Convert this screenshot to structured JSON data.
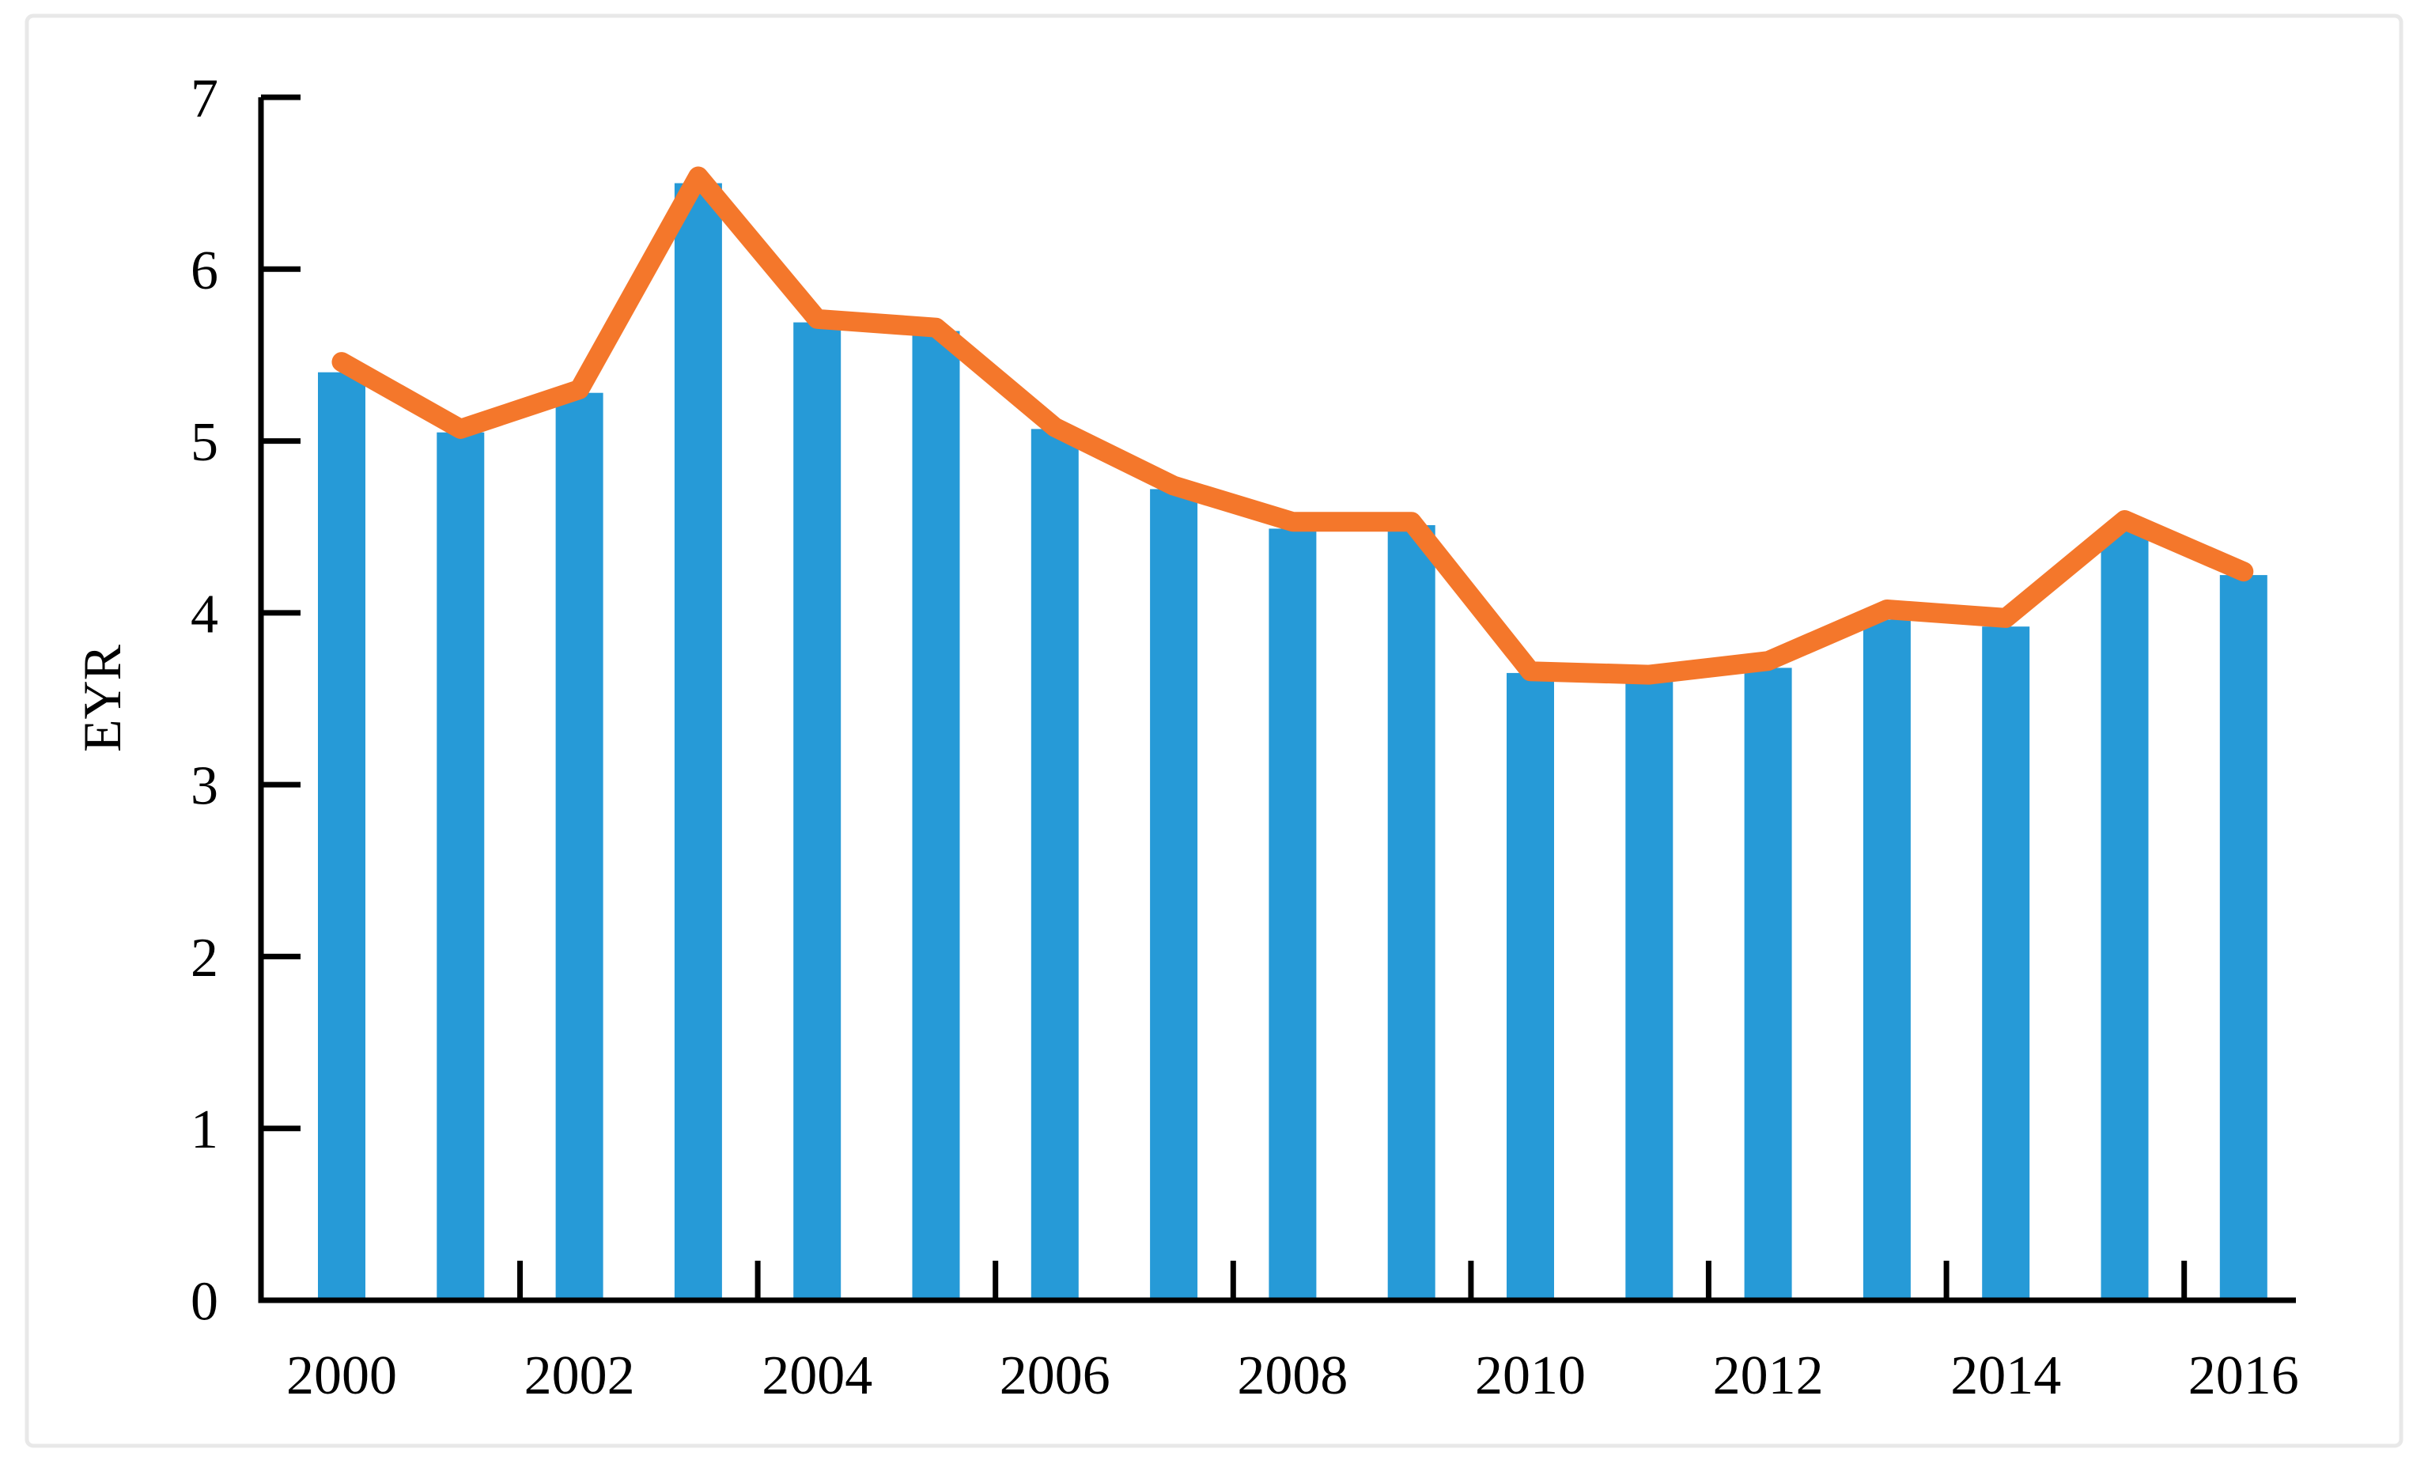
{
  "figure": {
    "ylabel": "EYR",
    "y_tick_labels": [
      "0",
      "1",
      "2",
      "3",
      "4",
      "5",
      "6",
      "7"
    ],
    "x_tick_labels": [
      "2000",
      "2002",
      "2004",
      "2006",
      "2008",
      "2010",
      "2012",
      "2014",
      "2016"
    ]
  },
  "colors": {
    "bar": "#269AD7",
    "line": "#F4772B",
    "axis": "#000000",
    "frame_border": "#E8E8E8",
    "background": "#FFFFFF",
    "text": "#000000"
  },
  "chart_data": {
    "type": "bar",
    "title": "",
    "xlabel": "",
    "ylabel": "EYR",
    "ylim": [
      0,
      7
    ],
    "y_tick_interval": 1,
    "x_label_interval": 2,
    "grid": false,
    "legend": "none",
    "categories": [
      2000,
      2001,
      2002,
      2003,
      2004,
      2005,
      2006,
      2007,
      2008,
      2009,
      2010,
      2011,
      2012,
      2013,
      2014,
      2015,
      2016
    ],
    "series": [
      {
        "name": "EYR",
        "type": "bar",
        "values": [
          5.4,
          5.05,
          5.28,
          6.5,
          5.69,
          5.64,
          5.07,
          4.72,
          4.49,
          4.51,
          3.65,
          3.62,
          3.68,
          3.96,
          3.92,
          4.5,
          4.22
        ]
      },
      {
        "name": "EYR trend",
        "type": "line",
        "values": [
          5.46,
          5.07,
          5.3,
          6.54,
          5.71,
          5.66,
          5.08,
          4.74,
          4.53,
          4.53,
          3.66,
          3.64,
          3.72,
          4.02,
          3.97,
          4.54,
          4.24
        ]
      }
    ]
  }
}
